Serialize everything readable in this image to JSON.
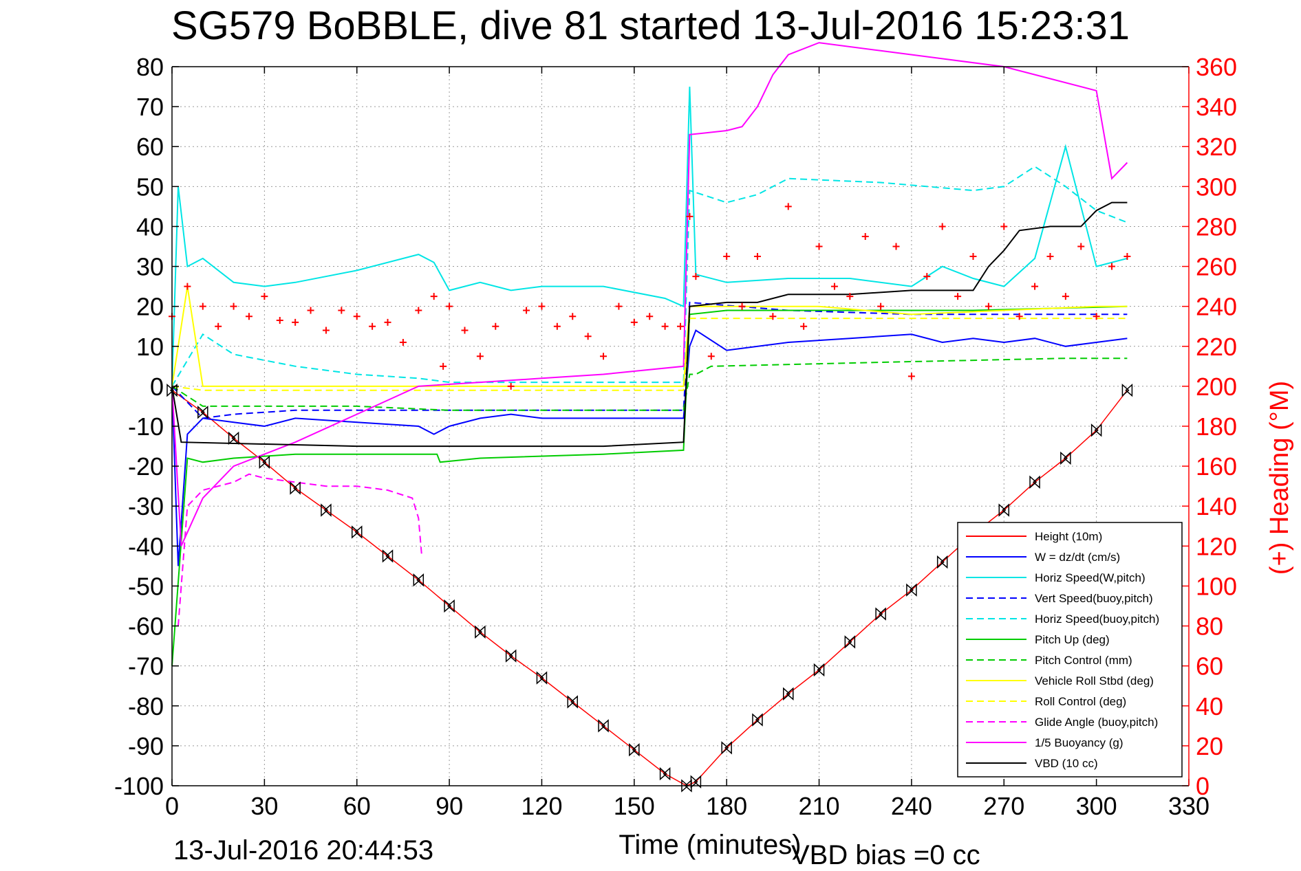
{
  "chart_data": {
    "type": "line",
    "title": "SG579 BoBBLE, dive 81 started 13-Jul-2016 15:23:31",
    "xlabel": "Time (minutes)",
    "ylabel": "",
    "y2label": "(+) Heading (°M)",
    "xlim": [
      0,
      330
    ],
    "ylim": [
      -100,
      80
    ],
    "y2lim": [
      0,
      360
    ],
    "xticks": [
      "0",
      "30",
      "60",
      "90",
      "120",
      "150",
      "180",
      "210",
      "240",
      "270",
      "300",
      "330"
    ],
    "yticks": [
      "80",
      "70",
      "60",
      "50",
      "40",
      "30",
      "20",
      "10",
      "0",
      "-10",
      "-20",
      "-30",
      "-40",
      "-50",
      "-60",
      "-70",
      "-80",
      "-90",
      "-100"
    ],
    "y2ticks": [
      "360",
      "340",
      "320",
      "300",
      "280",
      "260",
      "240",
      "220",
      "200",
      "180",
      "160",
      "140",
      "120",
      "100",
      "80",
      "60",
      "40",
      "20",
      "0"
    ],
    "grid": true,
    "legend_position": "bottom-right",
    "series": [
      {
        "name": "Height (10m)",
        "color": "#ff0000",
        "style": "solid",
        "x": [
          0,
          10,
          20,
          30,
          40,
          50,
          60,
          70,
          80,
          90,
          100,
          110,
          120,
          130,
          140,
          150,
          160,
          167,
          170,
          180,
          190,
          200,
          210,
          220,
          230,
          240,
          250,
          260,
          270,
          280,
          290,
          300,
          310
        ],
        "y": [
          -1,
          -6.5,
          -13,
          -19,
          -25.5,
          -31,
          -36.5,
          -42.5,
          -48.5,
          -55,
          -61.5,
          -67.5,
          -73,
          -79,
          -85,
          -91,
          -97,
          -100,
          -99,
          -90.5,
          -83.5,
          -77,
          -71,
          -64,
          -57,
          -51,
          -44,
          -37,
          -31,
          -24,
          -18,
          -11,
          -1
        ]
      },
      {
        "name": "W = dz/dt (cm/s)",
        "color": "#0000ff",
        "style": "solid",
        "x": [
          0,
          2,
          5,
          10,
          20,
          30,
          40,
          60,
          80,
          85,
          90,
          100,
          110,
          120,
          140,
          160,
          166,
          168,
          170,
          180,
          200,
          220,
          240,
          250,
          260,
          270,
          280,
          290,
          300,
          310
        ],
        "y": [
          0,
          -45,
          -12,
          -8,
          -9,
          -10,
          -8,
          -9,
          -10,
          -12,
          -10,
          -8,
          -7,
          -8,
          -8,
          -8,
          -8,
          10,
          14,
          9,
          11,
          12,
          13,
          11,
          12,
          11,
          12,
          10,
          11,
          12
        ]
      },
      {
        "name": "Horiz Speed(W,pitch)",
        "color": "#00e5e5",
        "style": "solid",
        "x": [
          0,
          2,
          5,
          10,
          20,
          30,
          40,
          60,
          80,
          85,
          90,
          100,
          110,
          120,
          140,
          160,
          166,
          168,
          170,
          180,
          200,
          220,
          240,
          250,
          260,
          270,
          280,
          290,
          300,
          310
        ],
        "y": [
          0,
          50,
          30,
          32,
          26,
          25,
          26,
          29,
          33,
          31,
          24,
          26,
          24,
          25,
          25,
          22,
          20,
          75,
          28,
          26,
          27,
          27,
          25,
          30,
          27,
          25,
          32,
          60,
          30,
          32
        ]
      },
      {
        "name": "Vert Speed(buoy,pitch)",
        "color": "#0000ff",
        "style": "dashed",
        "x": [
          0,
          10,
          20,
          40,
          60,
          80,
          166,
          168,
          200,
          240,
          280,
          310
        ],
        "y": [
          0,
          -8,
          -7,
          -6,
          -6,
          -6,
          -6,
          21,
          19,
          18,
          18,
          18
        ]
      },
      {
        "name": "Horiz Speed(buoy,pitch)",
        "color": "#00e5e5",
        "style": "dashed",
        "x": [
          0,
          10,
          20,
          40,
          60,
          80,
          90,
          166,
          168,
          180,
          190,
          200,
          230,
          260,
          270,
          280,
          290,
          300,
          310
        ],
        "y": [
          0,
          13,
          8,
          5,
          3,
          2,
          1,
          1,
          49,
          46,
          48,
          52,
          51,
          49,
          50,
          55,
          50,
          44,
          41
        ]
      },
      {
        "name": "Pitch Up (deg)",
        "color": "#00cc00",
        "style": "solid",
        "x": [
          0,
          5,
          10,
          20,
          40,
          60,
          86,
          87,
          100,
          140,
          166,
          168,
          180,
          220,
          260,
          310
        ],
        "y": [
          -70,
          -18,
          -19,
          -18,
          -17,
          -17,
          -17,
          -19,
          -18,
          -17,
          -16,
          18,
          19,
          19,
          19,
          20
        ]
      },
      {
        "name": "Pitch Control (mm)",
        "color": "#00cc00",
        "style": "dashed",
        "x": [
          0,
          10,
          60,
          90,
          166,
          168,
          170,
          175,
          230,
          290,
          310
        ],
        "y": [
          0,
          -5,
          -5,
          -6,
          -6,
          3,
          3,
          5,
          6,
          7,
          7
        ]
      },
      {
        "name": "Vehicle Roll Stbd (deg)",
        "color": "#ffff00",
        "style": "solid",
        "x": [
          0,
          5,
          10,
          20,
          40,
          60,
          90,
          120,
          150,
          166,
          168,
          180,
          210,
          240,
          270,
          300,
          310
        ],
        "y": [
          0,
          25,
          0,
          0,
          0,
          0,
          0,
          0,
          0,
          0,
          20,
          20,
          20,
          18,
          19,
          20,
          20
        ]
      },
      {
        "name": "Roll Control (deg)",
        "color": "#ffff00",
        "style": "dashed",
        "x": [
          0,
          10,
          30,
          60,
          90,
          120,
          150,
          166,
          168,
          200,
          240,
          280,
          310
        ],
        "y": [
          0,
          -1,
          -1,
          -1,
          -1,
          -1,
          -1,
          -1,
          17,
          17,
          17,
          17,
          17
        ]
      },
      {
        "name": "Glide Angle (buoy,pitch)",
        "color": "#ff00ff",
        "style": "dashed",
        "x": [
          2,
          5,
          10,
          20,
          25,
          30,
          40,
          50,
          60,
          70,
          78,
          80,
          81
        ],
        "y": [
          -60,
          -30,
          -26,
          -24,
          -22,
          -23,
          -24,
          -25,
          -25,
          -26,
          -28,
          -33,
          -42
        ]
      },
      {
        "name": "1/5 Buoyancy (g)",
        "color": "#ff00ff",
        "style": "solid",
        "x": [
          0,
          3,
          10,
          20,
          40,
          60,
          80,
          100,
          120,
          140,
          166,
          168,
          180,
          185,
          190,
          195,
          200,
          210,
          230,
          250,
          270,
          300,
          305,
          310
        ],
        "y": [
          0,
          -40,
          -28,
          -20,
          -14,
          -7,
          0,
          1,
          2,
          3,
          5,
          63,
          64,
          65,
          70,
          78,
          83,
          86,
          84,
          82,
          80,
          74,
          52,
          56
        ]
      },
      {
        "name": "VBD (10 cc)",
        "color": "#000000",
        "style": "solid",
        "x": [
          0,
          3,
          60,
          100,
          140,
          166,
          168,
          180,
          190,
          200,
          220,
          240,
          260,
          265,
          270,
          275,
          285,
          295,
          300,
          305,
          310
        ],
        "y": [
          0,
          -14,
          -15,
          -15,
          -15,
          -14,
          20,
          21,
          21,
          23,
          23,
          24,
          24,
          30,
          34,
          39,
          40,
          40,
          44,
          46,
          46
        ]
      },
      {
        "name": "Heading",
        "color": "#ff0000",
        "axis": "right",
        "style": "markers",
        "x": [
          0,
          5,
          10,
          15,
          20,
          25,
          30,
          35,
          40,
          45,
          50,
          55,
          60,
          65,
          70,
          75,
          80,
          85,
          88,
          90,
          95,
          100,
          105,
          110,
          115,
          120,
          125,
          130,
          135,
          140,
          145,
          150,
          155,
          160,
          165,
          168,
          170,
          175,
          180,
          185,
          190,
          195,
          200,
          205,
          210,
          215,
          220,
          225,
          230,
          235,
          240,
          245,
          250,
          255,
          260,
          265,
          270,
          275,
          280,
          285,
          290,
          295,
          300,
          305,
          310
        ],
        "y": [
          235,
          250,
          240,
          230,
          240,
          235,
          245,
          233,
          232,
          238,
          228,
          238,
          235,
          230,
          232,
          222,
          238,
          245,
          210,
          240,
          228,
          215,
          230,
          200,
          238,
          240,
          230,
          235,
          225,
          215,
          240,
          232,
          235,
          230,
          230,
          285,
          255,
          215,
          265,
          240,
          265,
          235,
          290,
          230,
          270,
          250,
          245,
          275,
          240,
          270,
          205,
          255,
          280,
          245,
          265,
          240,
          280,
          235,
          250,
          265,
          245,
          270,
          235,
          260,
          265
        ]
      }
    ]
  },
  "footer": {
    "datetime": "13-Jul-2016 20:44:53",
    "vbd_bias": "VBD bias =0 cc"
  }
}
